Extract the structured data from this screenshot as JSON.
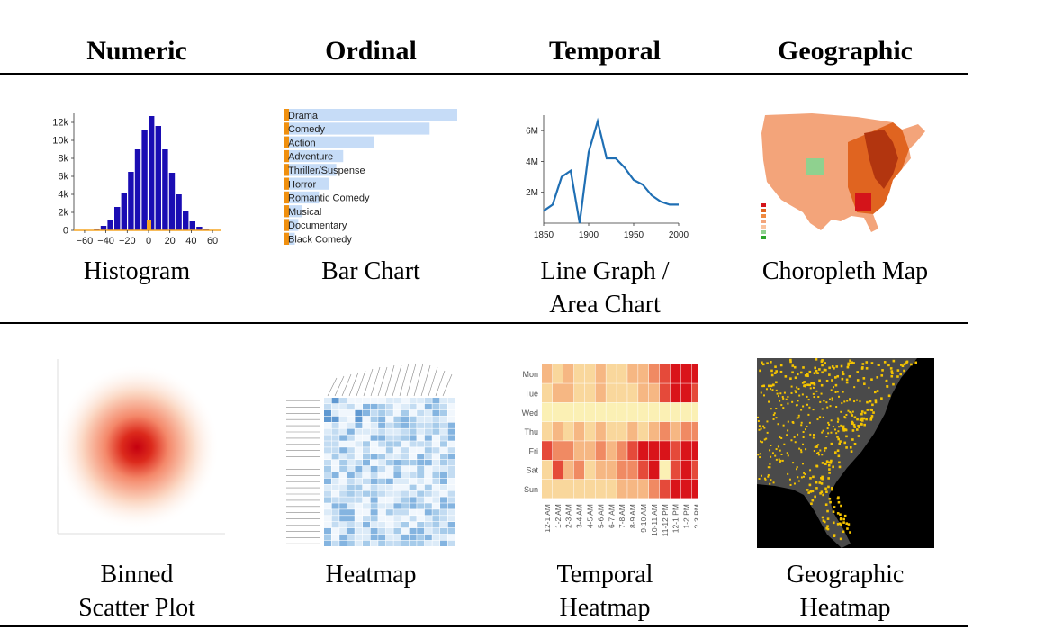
{
  "headers": {
    "numeric": "Numeric",
    "ordinal": "Ordinal",
    "temporal": "Temporal",
    "geographic": "Geographic"
  },
  "captions": {
    "histogram": "Histogram",
    "bar_chart": "Bar Chart",
    "line_graph_1": "Line Graph /",
    "line_graph_2": "Area Chart",
    "choropleth": "Choropleth Map",
    "binned_scatter_1": "Binned",
    "binned_scatter_2": "Scatter Plot",
    "heatmap": "Heatmap",
    "temporal_heatmap_1": "Temporal",
    "temporal_heatmap_2": "Heatmap",
    "geo_heatmap_1": "Geographic",
    "geo_heatmap_2": "Heatmap"
  },
  "chart_data": [
    {
      "type": "bar",
      "name": "histogram",
      "categories": [
        "-38",
        "-34",
        "-30",
        "-26",
        "-22",
        "-18",
        "-14",
        "-10",
        "-6",
        "-2",
        "2",
        "6",
        "10",
        "14",
        "18",
        "22",
        "26",
        "30",
        "34",
        "38"
      ],
      "values": [
        0,
        0,
        200,
        500,
        1200,
        2600,
        4200,
        6500,
        9000,
        11200,
        12700,
        11600,
        9000,
        6400,
        4000,
        2100,
        1000,
        400,
        100,
        0
      ],
      "highlight_value": 1200,
      "y_ticks": [
        "0",
        "2k",
        "4k",
        "6k",
        "8k",
        "10k",
        "12k"
      ],
      "x_ticks": [
        "−60",
        "−40",
        "−20",
        "0",
        "20",
        "40",
        "60"
      ],
      "ylim": [
        0,
        13000
      ],
      "colors": {
        "bars": "#1a0db3",
        "highlight": "#f5a623"
      }
    },
    {
      "type": "bar",
      "name": "bar_chart",
      "categories": [
        "Drama",
        "Comedy",
        "Action",
        "Adventure",
        "Thriller/Suspense",
        "Horror",
        "Romantic Comedy",
        "Musical",
        "Documentary",
        "Black Comedy"
      ],
      "values": [
        100,
        84,
        52,
        34,
        30,
        26,
        20,
        10,
        8,
        6
      ],
      "colors": {
        "bars": "#c6dcf7",
        "highlight": "#f0900f"
      }
    },
    {
      "type": "line",
      "name": "line_graph",
      "x": [
        1850,
        1860,
        1870,
        1880,
        1890,
        1900,
        1910,
        1920,
        1930,
        1940,
        1950,
        1960,
        1970,
        1980,
        1990,
        2000
      ],
      "values": [
        0.8,
        1.2,
        3.0,
        3.4,
        0.0,
        4.6,
        6.6,
        4.2,
        4.2,
        3.6,
        2.8,
        2.5,
        1.8,
        1.4,
        1.2,
        1.2
      ],
      "y_ticks": [
        "2M",
        "4M",
        "6M"
      ],
      "x_ticks": [
        "1850",
        "1900",
        "1950",
        "2000"
      ],
      "ylim": [
        0,
        7
      ],
      "colors": {
        "line": "#1f6fb4"
      }
    },
    {
      "type": "heatmap",
      "name": "temporal_heatmap",
      "rows": [
        "Mon",
        "Tue",
        "Wed",
        "Thu",
        "Fri",
        "Sat",
        "Sun"
      ],
      "columns": [
        "12-1 AM",
        "1-2 AM",
        "2-3 AM",
        "3-4 AM",
        "4-5 AM",
        "5-6 AM",
        "6-7 AM",
        "7-8 AM",
        "8-9 AM",
        "9-10 AM",
        "10-11 AM",
        "11-12 PM",
        "12-1 PM",
        "1-2 PM",
        "2-3 PM"
      ],
      "values": [
        [
          3,
          2,
          3,
          2,
          2,
          3,
          2,
          2,
          3,
          3,
          4,
          5,
          6,
          6,
          6
        ],
        [
          2,
          3,
          3,
          2,
          2,
          3,
          2,
          2,
          2,
          3,
          3,
          5,
          6,
          6,
          5
        ],
        [
          1,
          1,
          1,
          1,
          1,
          1,
          1,
          1,
          1,
          1,
          1,
          1,
          1,
          1,
          1
        ],
        [
          2,
          3,
          2,
          3,
          2,
          3,
          2,
          2,
          3,
          2,
          3,
          4,
          3,
          4,
          4
        ],
        [
          5,
          4,
          4,
          3,
          3,
          4,
          3,
          4,
          5,
          6,
          6,
          6,
          5,
          6,
          6
        ],
        [
          2,
          5,
          3,
          4,
          2,
          3,
          3,
          4,
          4,
          5,
          6,
          1,
          5,
          6,
          5
        ],
        [
          2,
          2,
          2,
          2,
          2,
          2,
          2,
          3,
          3,
          3,
          4,
          5,
          6,
          6,
          6
        ]
      ],
      "colors": {
        "low": "#fbf4c0",
        "high": "#d9141a"
      }
    }
  ]
}
